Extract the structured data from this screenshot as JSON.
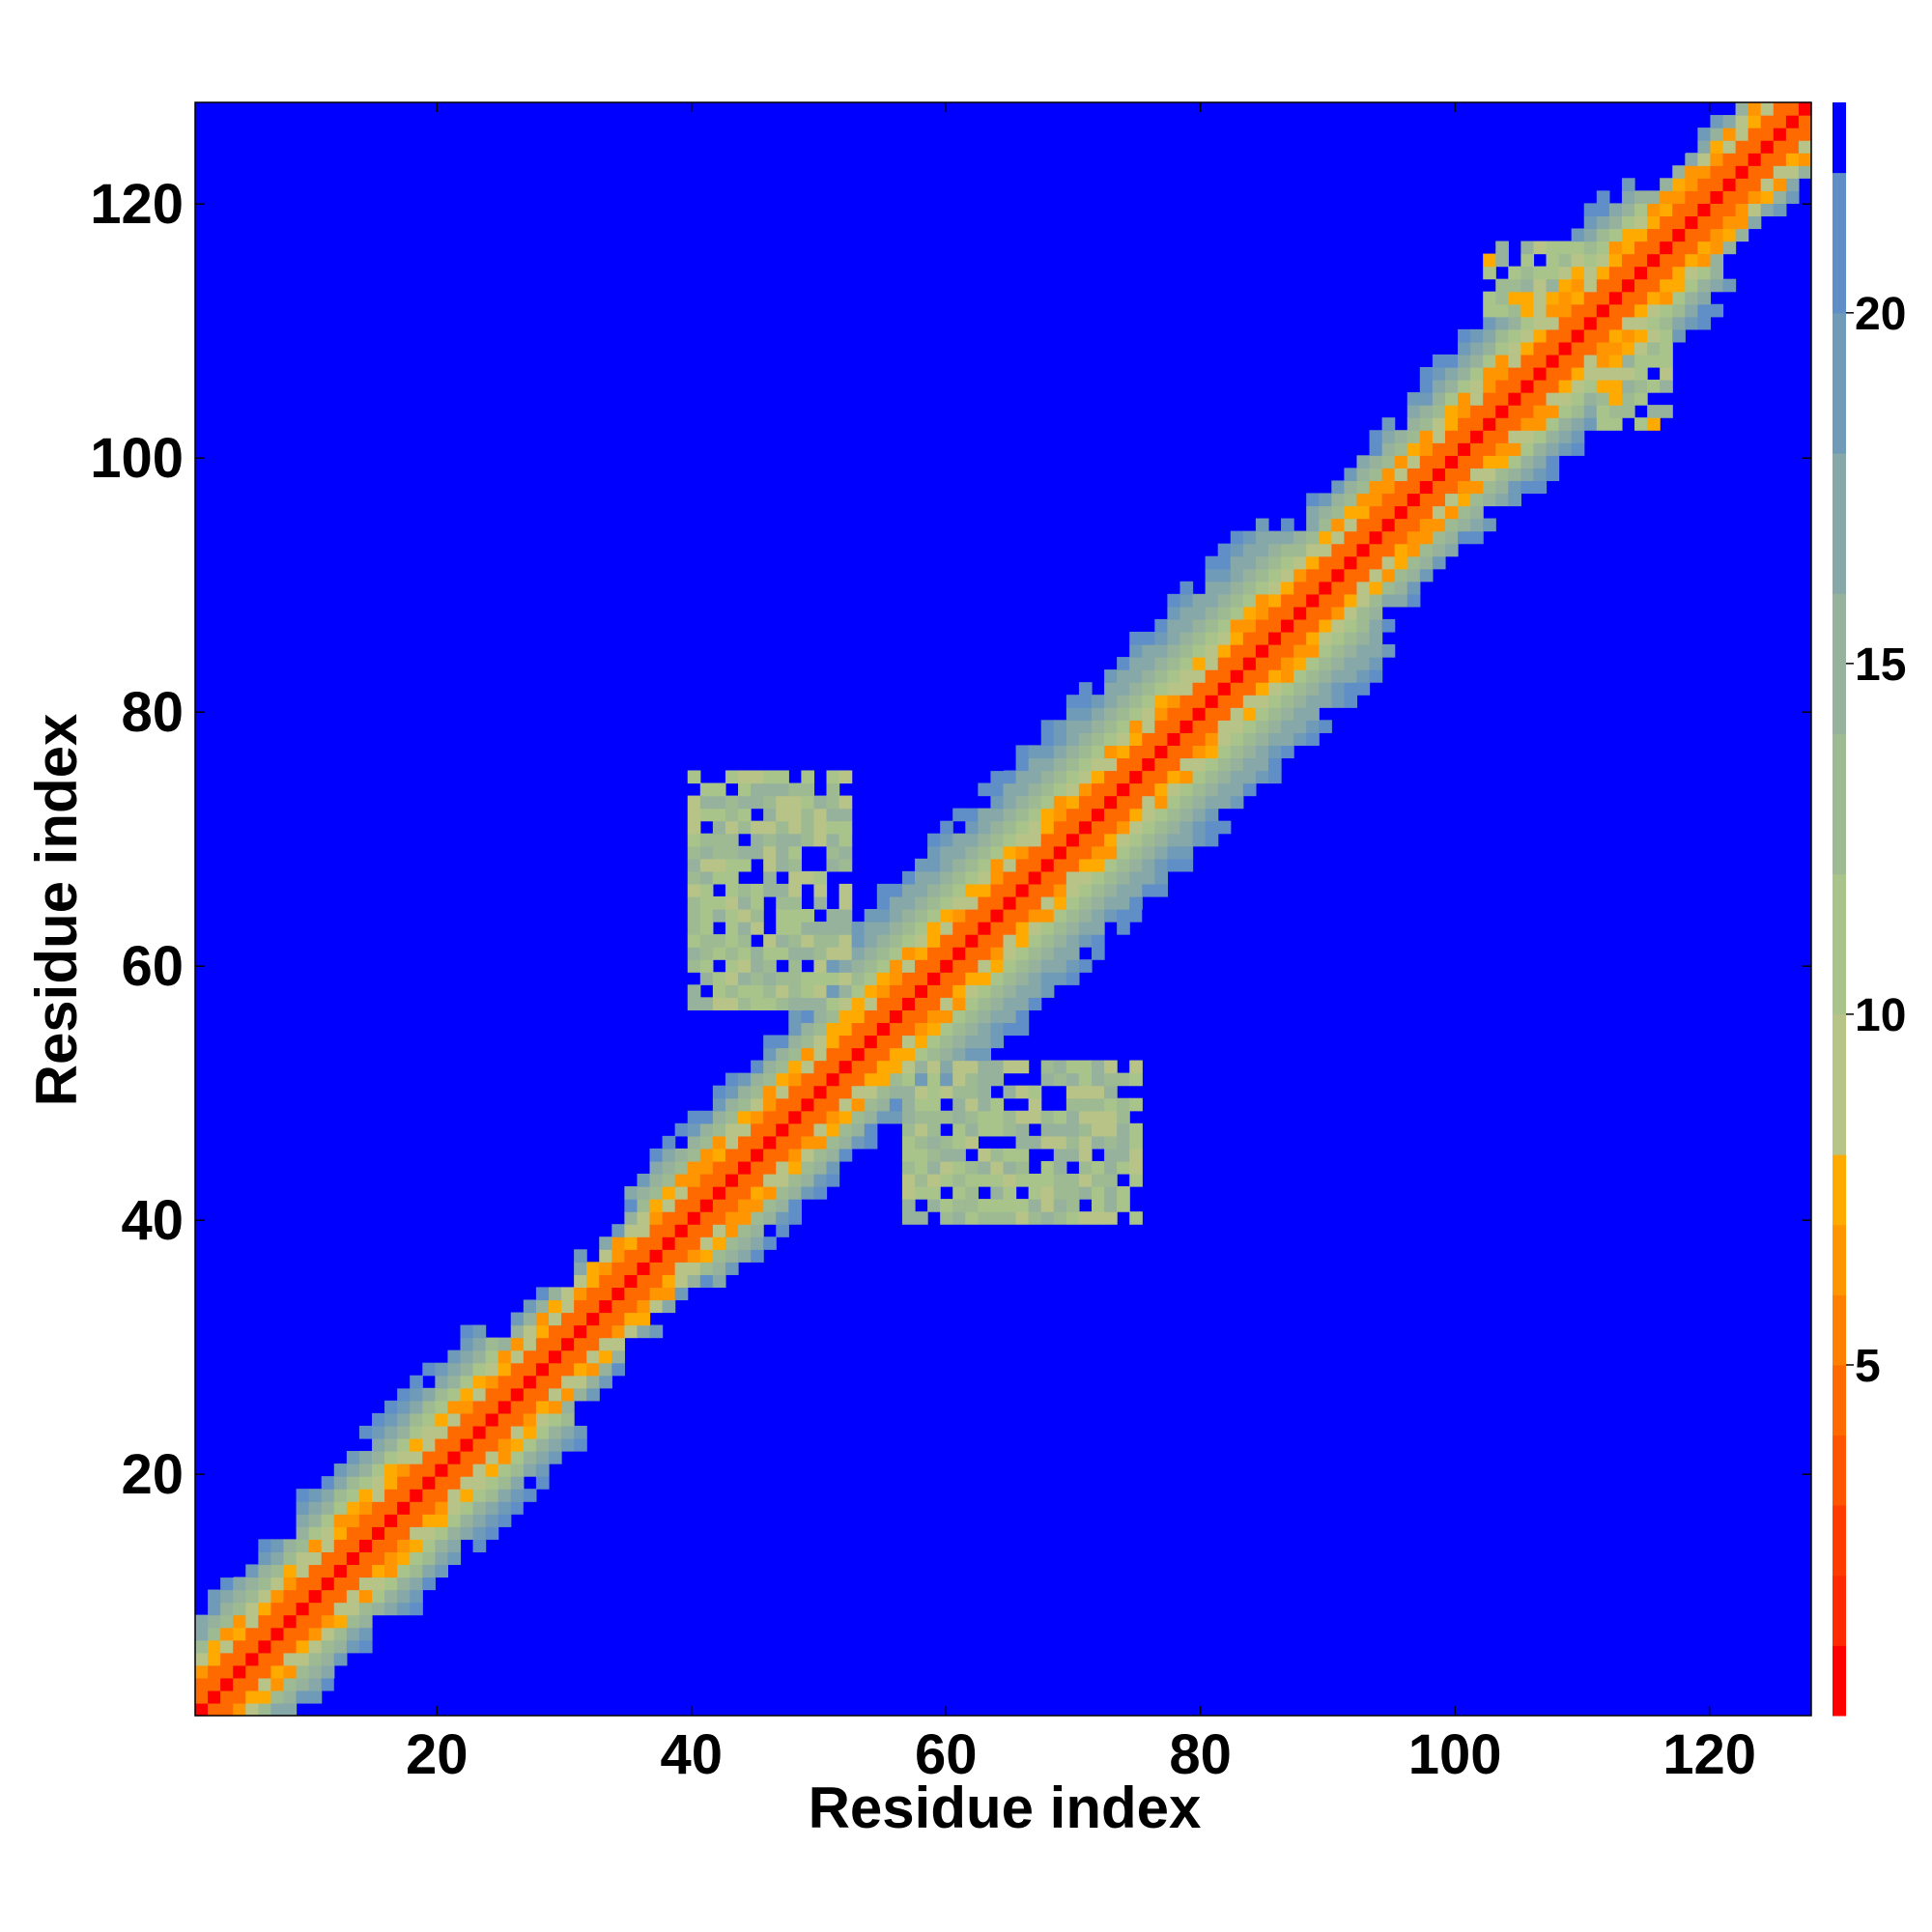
{
  "chart_data": {
    "type": "heatmap",
    "title": "",
    "xlabel": "Residue index",
    "ylabel": "Residue index",
    "n_residues": 128,
    "xlim": [
      1,
      128
    ],
    "ylim": [
      1,
      128
    ],
    "xticks": [
      20,
      40,
      60,
      80,
      100,
      120
    ],
    "yticks": [
      20,
      40,
      60,
      80,
      100,
      120
    ],
    "colorbar": {
      "ticks": [
        5,
        10,
        15,
        20
      ],
      "range": [
        0,
        23
      ],
      "levels": [
        {
          "from": 0,
          "to": 1,
          "color": "#ff0000"
        },
        {
          "from": 1,
          "to": 2,
          "color": "#ff2a00"
        },
        {
          "from": 2,
          "to": 3,
          "color": "#ff3c00"
        },
        {
          "from": 3,
          "to": 4,
          "color": "#ff5500"
        },
        {
          "from": 4,
          "to": 5,
          "color": "#ff6a00"
        },
        {
          "from": 5,
          "to": 6,
          "color": "#ff7f00"
        },
        {
          "from": 6,
          "to": 7,
          "color": "#ff9500"
        },
        {
          "from": 7,
          "to": 8,
          "color": "#ffaa00"
        },
        {
          "from": 8,
          "to": 10,
          "color": "#b8c387"
        },
        {
          "from": 10,
          "to": 12,
          "color": "#a9c48b"
        },
        {
          "from": 12,
          "to": 14,
          "color": "#9dba92"
        },
        {
          "from": 14,
          "to": 16,
          "color": "#96b29c"
        },
        {
          "from": 16,
          "to": 18,
          "color": "#87a8a8"
        },
        {
          "from": 18,
          "to": 20,
          "color": "#6f9ab8"
        },
        {
          "from": 20,
          "to": 22,
          "color": "#5f8fc6"
        },
        {
          "from": 22,
          "to": 23,
          "color": "#0000ff"
        }
      ]
    },
    "cutoff_value": 23,
    "background_color": "#0000ff",
    "diagonal_band": {
      "segments": [
        {
          "start": 1,
          "end": 12,
          "halfwidth": 8
        },
        {
          "start": 12,
          "end": 27,
          "halfwidth": 9
        },
        {
          "start": 27,
          "end": 38,
          "halfwidth": 6
        },
        {
          "start": 38,
          "end": 55,
          "halfwidth": 8
        },
        {
          "start": 55,
          "end": 90,
          "halfwidth": 11
        },
        {
          "start": 90,
          "end": 102,
          "halfwidth": 8
        },
        {
          "start": 102,
          "end": 118,
          "halfwidth": 9
        },
        {
          "start": 118,
          "end": 128,
          "halfwidth": 6
        }
      ]
    },
    "off_diagonal_blocks": [
      {
        "i_range": [
          40,
          52
        ],
        "j_range": [
          57,
          75
        ],
        "mean_value": 12
      },
      {
        "i_range": [
          103,
          110
        ],
        "j_range": [
          112,
          117
        ],
        "mean_value": 11
      }
    ]
  }
}
